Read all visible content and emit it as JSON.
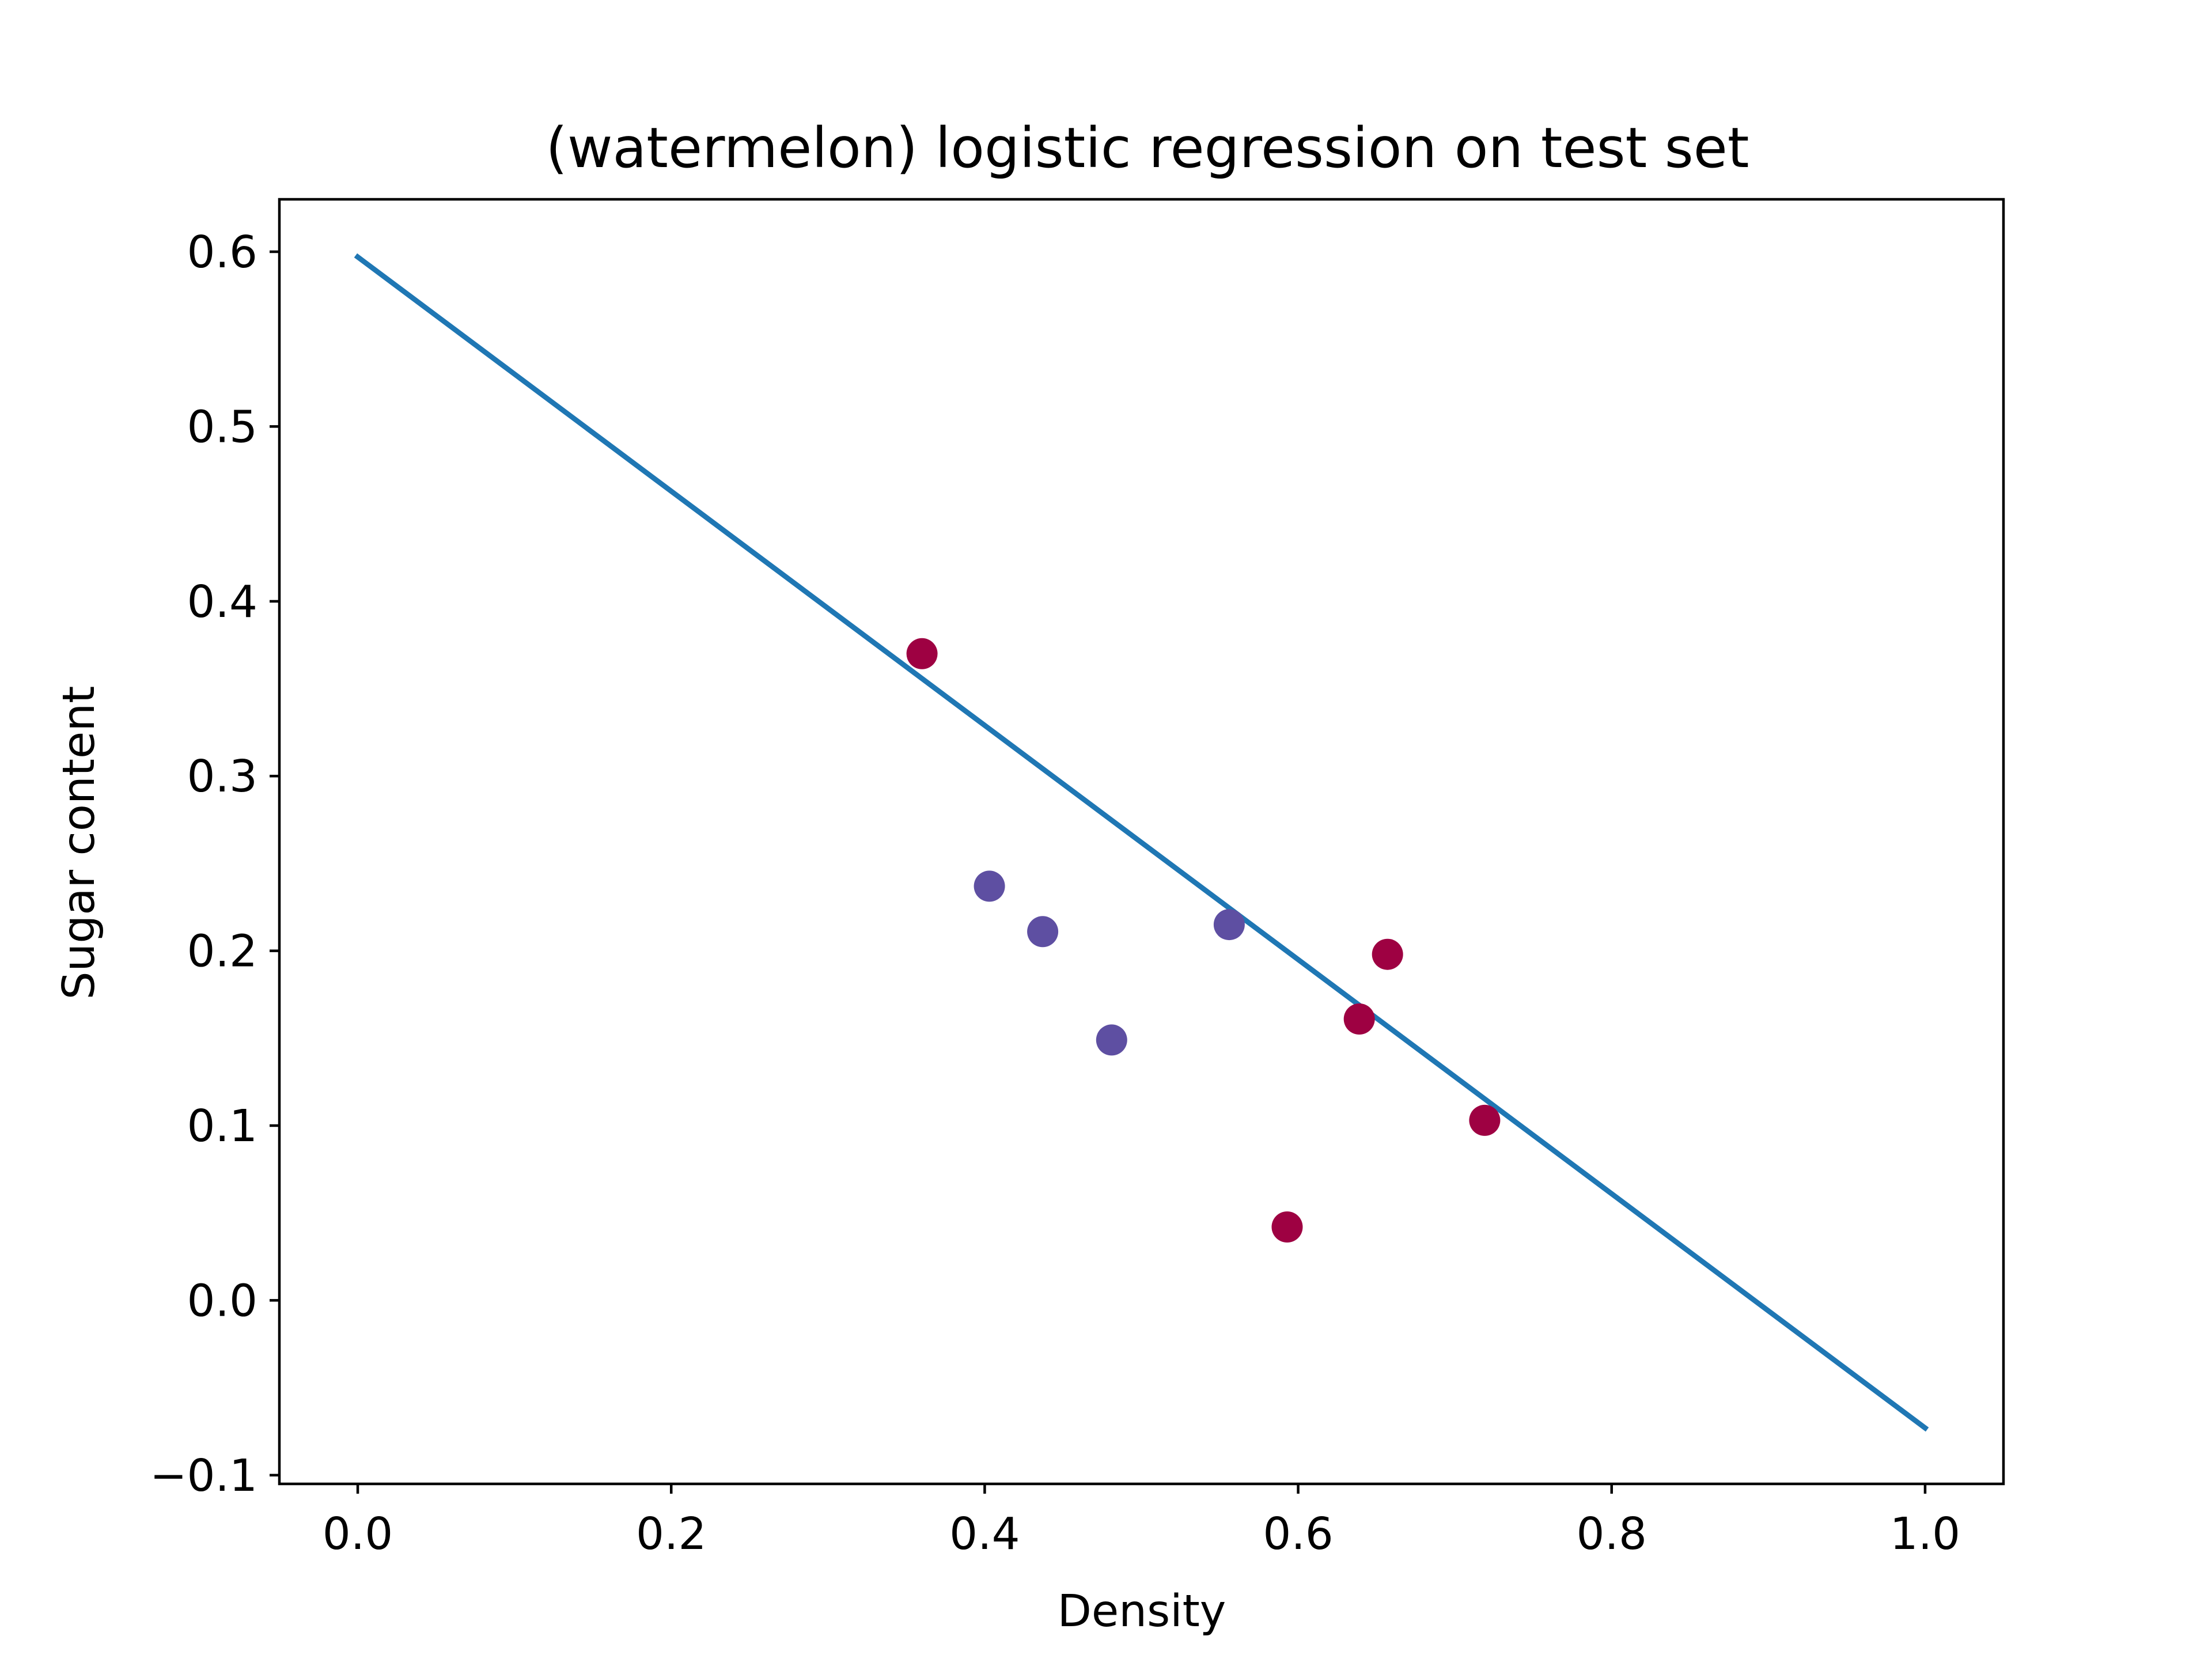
{
  "chart_data": {
    "type": "scatter",
    "title": "(watermelon) logistic regression on test set",
    "xlabel": "Density",
    "ylabel": "Sugar content",
    "xlim": [
      -0.05,
      1.05
    ],
    "ylim": [
      -0.105,
      0.63
    ],
    "x_ticks": [
      0.0,
      0.2,
      0.4,
      0.6,
      0.8,
      1.0
    ],
    "x_tick_labels": [
      "0.0",
      "0.2",
      "0.4",
      "0.6",
      "0.8",
      "1.0"
    ],
    "y_ticks": [
      -0.1,
      0.0,
      0.1,
      0.2,
      0.3,
      0.4,
      0.5,
      0.6
    ],
    "y_tick_labels": [
      "−0.1",
      "0.0",
      "0.1",
      "0.2",
      "0.3",
      "0.4",
      "0.5",
      "0.6"
    ],
    "grid": false,
    "series": [
      {
        "type": "scatter",
        "color": "#9e0142",
        "points": [
          {
            "x": 0.36,
            "y": 0.37
          },
          {
            "x": 0.593,
            "y": 0.042
          },
          {
            "x": 0.639,
            "y": 0.161
          },
          {
            "x": 0.657,
            "y": 0.198
          },
          {
            "x": 0.719,
            "y": 0.103
          }
        ]
      },
      {
        "type": "scatter",
        "color": "#5e4fa2",
        "points": [
          {
            "x": 0.403,
            "y": 0.237
          },
          {
            "x": 0.437,
            "y": 0.211
          },
          {
            "x": 0.481,
            "y": 0.149
          },
          {
            "x": 0.556,
            "y": 0.215
          }
        ]
      },
      {
        "type": "line",
        "color": "#1f77b4",
        "points": [
          {
            "x": 0.0,
            "y": 0.597
          },
          {
            "x": 1.0,
            "y": -0.073
          }
        ]
      }
    ]
  }
}
